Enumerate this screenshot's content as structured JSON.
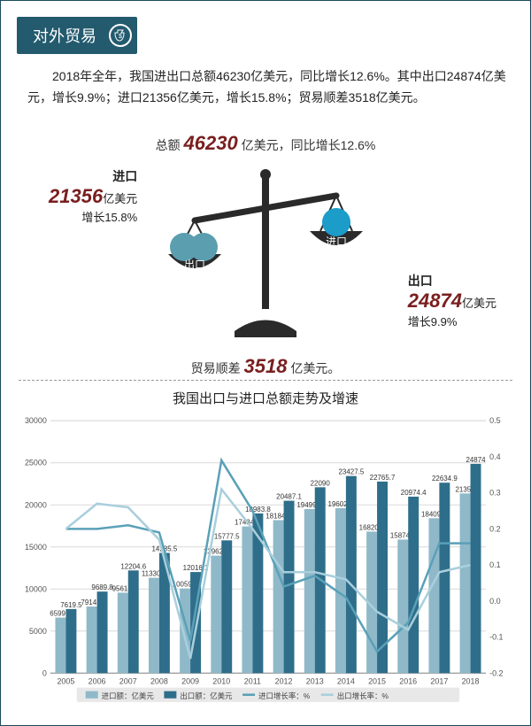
{
  "header": {
    "title": "对外贸易",
    "icon": "money-bag-icon"
  },
  "paragraph": "2018年全年，我国进出口总额46230亿美元，同比增长12.6%。其中出口24874亿美元，增长9.9%；进口21356亿美元，增长15.8%；贸易顺差3518亿美元。",
  "summary": {
    "prefix": "总额",
    "total": "46230",
    "unit": "亿美元，同比增长12.6%"
  },
  "import_block": {
    "label": "进口",
    "value": "21356",
    "unit": "亿美元",
    "growth": "增长15.8%"
  },
  "export_block": {
    "label": "出口",
    "value": "24874",
    "unit": "亿美元",
    "growth": "增长9.9%"
  },
  "scale_labels": {
    "left_pan": "出口",
    "right_pan": "进口"
  },
  "surplus": {
    "prefix": "贸易顺差",
    "value": "3518",
    "suffix": "亿美元。"
  },
  "chart": {
    "title": "我国出口与进口总额走势及增速",
    "type": "bar+line",
    "background_color": "#ffffff",
    "grid_color": "#d9d9d9",
    "font_size_axis": 9,
    "font_size_label": 8,
    "years": [
      "2005",
      "2006",
      "2007",
      "2008",
      "2009",
      "2010",
      "2011",
      "2012",
      "2013",
      "2014",
      "2015",
      "2016",
      "2017",
      "2018"
    ],
    "left_axis": {
      "min": 0,
      "max": 30000,
      "step": 5000
    },
    "right_axis": {
      "min": -0.2,
      "max": 0.5,
      "step": 0.1
    },
    "series": [
      {
        "name": "进口额：亿美元",
        "type": "bar",
        "color": "#8fb9c9",
        "values": [
          6599.8,
          7914.6,
          9561.2,
          11330.9,
          10059.2,
          13962.4,
          17434.6,
          18184.1,
          19499.9,
          19602.9,
          16820.7,
          15874.9,
          18409.8,
          21356
        ]
      },
      {
        "name": "出口额：亿美元",
        "type": "bar",
        "color": "#2f6e8a",
        "values": [
          7619.5,
          9689.8,
          12204.6,
          14285.5,
          12016.1,
          15777.5,
          18983.8,
          20487.1,
          22090,
          23427.5,
          22765.7,
          20974.4,
          22634.9,
          24874
        ]
      },
      {
        "name": "进口增长率：%",
        "type": "line",
        "color": "#5aa0b8",
        "width": 2.5,
        "values": [
          0.2,
          0.2,
          0.21,
          0.19,
          -0.11,
          0.39,
          0.25,
          0.04,
          0.07,
          0.01,
          -0.14,
          -0.06,
          0.16,
          0.16
        ]
      },
      {
        "name": "出口增长率：%",
        "type": "line",
        "color": "#a9cfdc",
        "width": 2.5,
        "values": [
          0.2,
          0.27,
          0.26,
          0.17,
          -0.16,
          0.31,
          0.2,
          0.08,
          0.08,
          0.06,
          -0.03,
          -0.08,
          0.08,
          0.1
        ]
      }
    ],
    "legend_bg": "#e8e8e8"
  },
  "colors": {
    "tab_bg": "#235a6e",
    "red": "#7a1f1f",
    "scale_dark": "#2a2a2a",
    "ball_teal": "#5a9eb0",
    "ball_blue": "#1b9cc9"
  }
}
